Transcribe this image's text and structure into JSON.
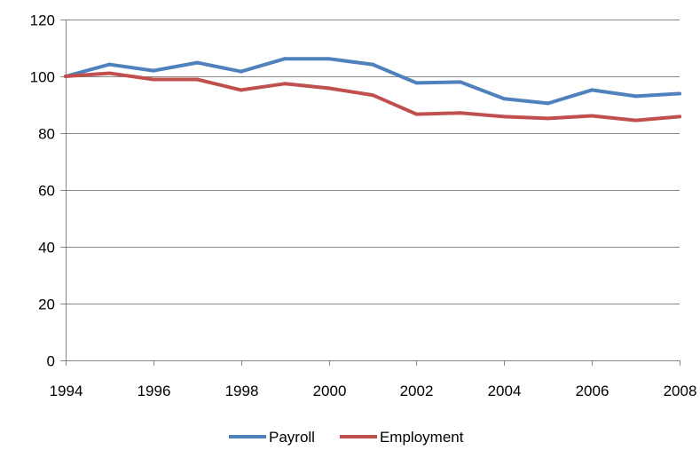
{
  "chart_data": {
    "type": "line",
    "title": "",
    "xlabel": "",
    "ylabel": "",
    "x": [
      1994,
      1995,
      1996,
      1997,
      1998,
      1999,
      2000,
      2001,
      2002,
      2003,
      2004,
      2005,
      2006,
      2007,
      2008
    ],
    "x_tick_labels": [
      "1994",
      "1996",
      "1998",
      "2000",
      "2002",
      "2004",
      "2006",
      "2008"
    ],
    "x_tick_values": [
      1994,
      1996,
      1998,
      2000,
      2002,
      2004,
      2006,
      2008
    ],
    "xlim": [
      1994,
      2008
    ],
    "ylim": [
      0,
      120
    ],
    "y_ticks": [
      0,
      20,
      40,
      60,
      80,
      100,
      120
    ],
    "y_tick_labels": [
      "0",
      "20",
      "40",
      "60",
      "80",
      "100",
      "120"
    ],
    "grid": true,
    "legend_position": "bottom",
    "series": [
      {
        "name": "Payroll",
        "color": "#4F81BD",
        "values": [
          100,
          104.2,
          102,
          104.8,
          101.7,
          106.2,
          106.2,
          104.2,
          97.7,
          98,
          92.1,
          90.5,
          95.2,
          93,
          93.9
        ]
      },
      {
        "name": "Employment",
        "color": "#C0504D",
        "values": [
          100,
          101.1,
          98.9,
          98.9,
          95.2,
          97.4,
          95.8,
          93.4,
          86.7,
          87.1,
          85.8,
          85.2,
          86.1,
          84.5,
          85.8
        ]
      }
    ]
  }
}
